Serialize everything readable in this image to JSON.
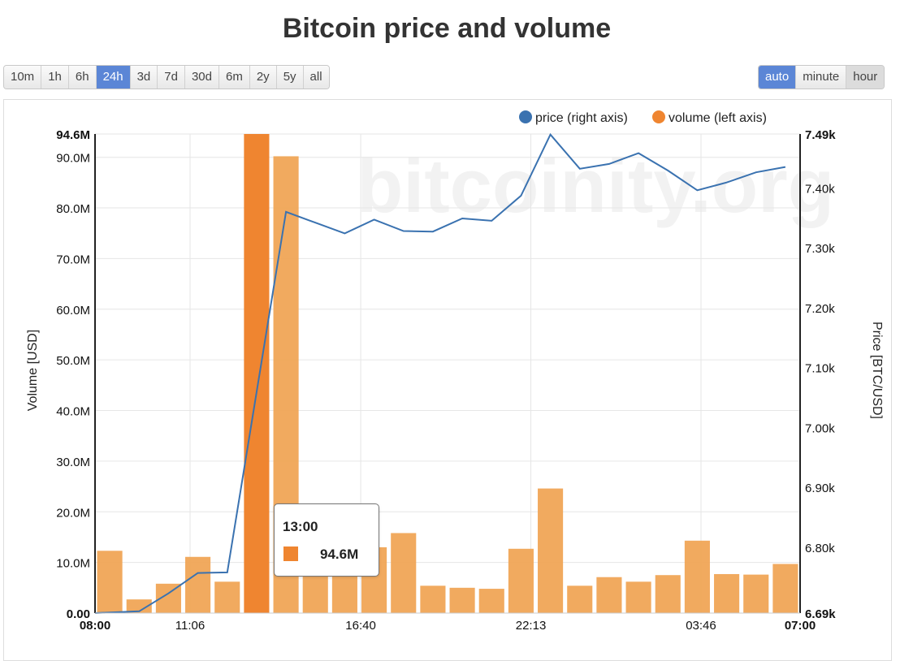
{
  "title": "Bitcoin price and volume",
  "range_buttons": [
    "10m",
    "1h",
    "6h",
    "24h",
    "3d",
    "7d",
    "30d",
    "6m",
    "2y",
    "5y",
    "all"
  ],
  "range_active": "24h",
  "resolution_buttons": [
    "auto",
    "minute",
    "hour"
  ],
  "resolution_active": "auto",
  "resolution_pressed": "hour",
  "watermark": "bitcoinity.org",
  "tooltip": {
    "time": "13:00",
    "value": "94.6M"
  },
  "colors": {
    "volume": "#ef8530",
    "volume_light": "#f0a556",
    "price": "#3a72b0",
    "active": "#5b86d6"
  },
  "chart_data": {
    "type": "bar+line",
    "title": "Bitcoin price and volume",
    "ylabel_left": "Volume [USD]",
    "ylabel_right": "Price [BTC/USD]",
    "left_axis": {
      "min": 0,
      "max": 94.6,
      "ticks": [
        0,
        10,
        20,
        30,
        40,
        50,
        60,
        70,
        80,
        90,
        94.6
      ],
      "tick_labels": [
        "0.00",
        "10.0M",
        "20.0M",
        "30.0M",
        "40.0M",
        "50.0M",
        "60.0M",
        "70.0M",
        "80.0M",
        "90.0M",
        "94.6M"
      ]
    },
    "right_axis": {
      "min": 6.69,
      "max": 7.49,
      "ticks": [
        6.69,
        6.8,
        6.9,
        7.0,
        7.1,
        7.2,
        7.3,
        7.4,
        7.49
      ],
      "tick_labels": [
        "6.69k",
        "6.80k",
        "6.90k",
        "7.00k",
        "7.10k",
        "7.20k",
        "7.30k",
        "7.40k",
        "7.49k"
      ]
    },
    "x_axis": {
      "min": 0,
      "max": 23,
      "ticks": [
        0,
        3.1,
        8.667,
        14.217,
        19.767,
        23
      ],
      "tick_labels": [
        "08:00",
        "11:06",
        "16:40",
        "22:13",
        "03:46",
        "07:00"
      ],
      "bold_ticks": [
        "08:00",
        "07:00"
      ]
    },
    "highlight_index": 5,
    "legend": [
      {
        "label": "price (right axis)",
        "series": "price"
      },
      {
        "label": "volume (left axis)",
        "series": "volume"
      }
    ],
    "series": [
      {
        "name": "volume",
        "axis": "left",
        "unit": "M USD",
        "values": [
          12.3,
          2.7,
          5.8,
          11.1,
          6.2,
          94.6,
          90.2,
          13.6,
          9.5,
          13.0,
          15.8,
          5.4,
          5.0,
          4.8,
          12.7,
          24.6,
          5.4,
          7.1,
          6.2,
          7.5,
          14.3,
          7.7,
          7.6,
          9.7
        ]
      },
      {
        "name": "price",
        "axis": "right",
        "unit": "k USD",
        "values": [
          6.69,
          6.693,
          6.723,
          6.757,
          6.758,
          7.059,
          7.36,
          7.342,
          7.324,
          7.347,
          7.328,
          7.327,
          7.349,
          7.345,
          7.387,
          7.489,
          7.432,
          7.44,
          7.458,
          7.429,
          7.396,
          7.409,
          7.426,
          7.435
        ]
      }
    ]
  }
}
